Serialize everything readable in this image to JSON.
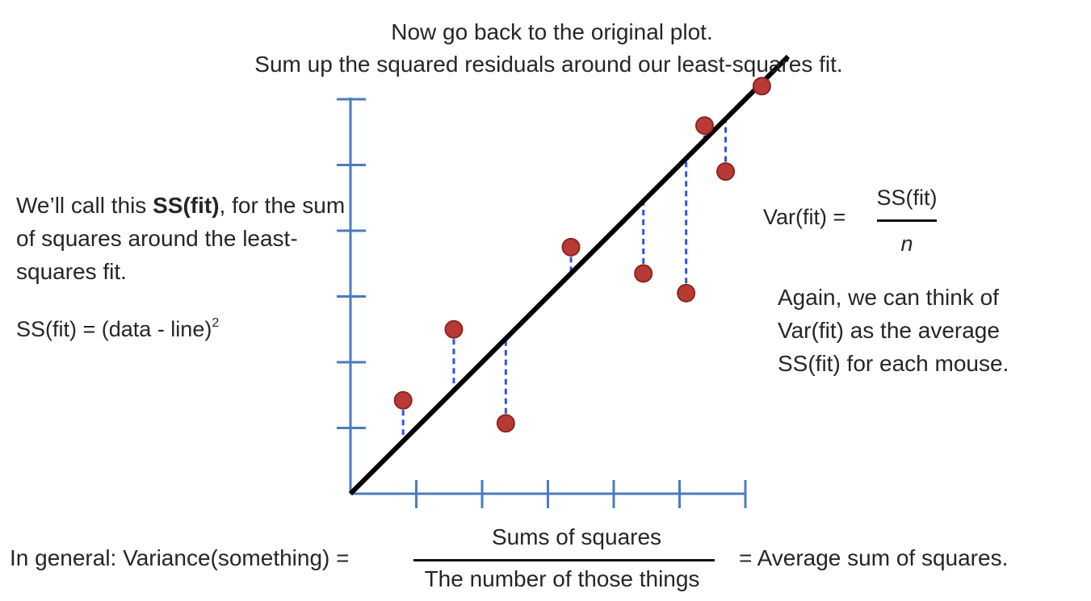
{
  "header": {
    "line1": "Now go back to the original plot.",
    "line2": "Sum up the squared residuals around our least-squares fit."
  },
  "left_note": {
    "prefix": "We’ll call this ",
    "bold": "SS(fit)",
    "suffix": ", for the sum of squares around the least-squares fit.",
    "formula": "SS(fit) = (data - line)",
    "formula_exponent": "2"
  },
  "variance_fit": {
    "label": "Var(fit) =",
    "numerator": "SS(fit)",
    "denominator": "n"
  },
  "right_note": {
    "text": "Again, we can think of Var(fit) as the average SS(fit) for each mouse."
  },
  "general": {
    "label": "In general: Variance(something) =",
    "numerator": "Sums of squares",
    "denominator": "The number of those things",
    "result": "= Average sum of squares."
  },
  "colors": {
    "axis": "#4a7cbf",
    "point_fill": "#b83a35",
    "point_stroke": "#8f2420",
    "residual": "#2f54e8",
    "fit_line": "#000000"
  },
  "chart_data": {
    "type": "scatter",
    "x_ticks": 6,
    "y_ticks": 6,
    "x_range": [
      0,
      6
    ],
    "y_range": [
      0,
      6
    ],
    "fit_line": {
      "intercept": 0,
      "slope": 1.0
    },
    "points": [
      {
        "x": 0.8,
        "y": 1.42
      },
      {
        "x": 1.57,
        "y": 2.5
      },
      {
        "x": 2.36,
        "y": 1.07
      },
      {
        "x": 3.35,
        "y": 3.75
      },
      {
        "x": 4.45,
        "y": 3.35
      },
      {
        "x": 5.1,
        "y": 3.05
      },
      {
        "x": 5.38,
        "y": 5.6
      },
      {
        "x": 5.7,
        "y": 4.9
      },
      {
        "x": 6.25,
        "y": 6.2
      }
    ]
  }
}
